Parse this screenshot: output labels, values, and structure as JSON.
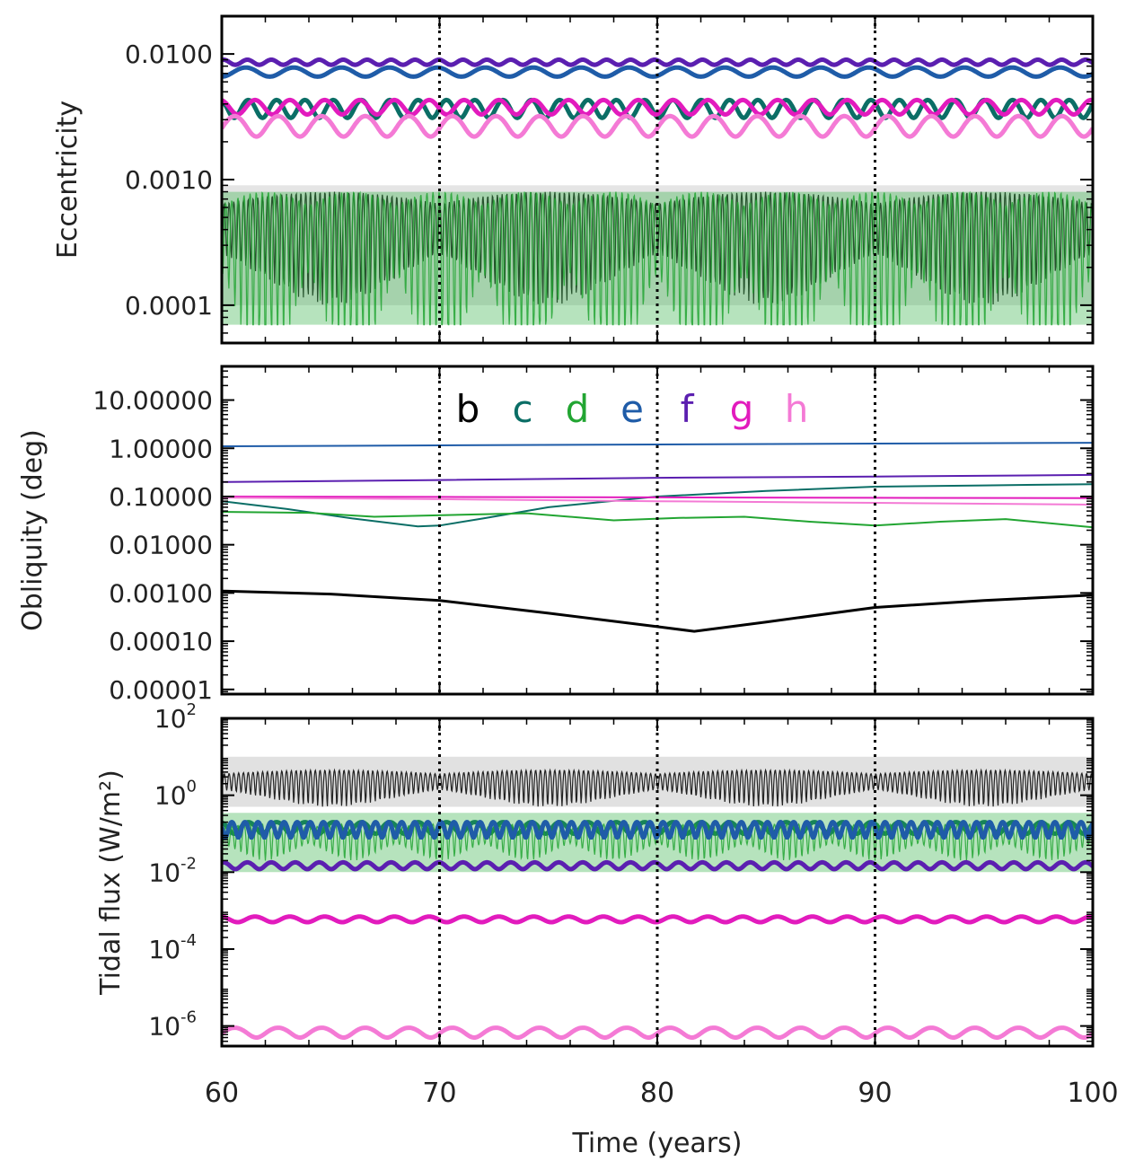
{
  "chart_data": [
    {
      "type": "line",
      "panel": "top",
      "title": "",
      "xlabel": "",
      "ylabel": "Eccentricity",
      "yscale": "log",
      "xlim": [
        60,
        100
      ],
      "ylim": [
        5e-05,
        0.02
      ],
      "xticks": [
        60,
        70,
        80,
        90,
        100
      ],
      "yticks": [
        {
          "value": 0.0001,
          "label": "0.0001"
        },
        {
          "value": 0.001,
          "label": "0.0010"
        },
        {
          "value": 0.01,
          "label": "0.0100"
        }
      ],
      "vlines": [
        70,
        80,
        90
      ],
      "series": [
        {
          "name": "b",
          "color": "#000000",
          "band_color": "#b5b5b5",
          "center": 0.00045,
          "amp": 0.00035,
          "lo": 0.0001,
          "hi": 0.0009,
          "period": 0.22,
          "beat": 20
        },
        {
          "name": "c",
          "color": "#0b6e66",
          "center": 0.0037,
          "amp": 0.0006,
          "lo": 0.0031,
          "hi": 0.0047,
          "period": 1.3,
          "beat": 0
        },
        {
          "name": "d",
          "color": "#22a532",
          "band_color": "#2fb043",
          "center": 0.0004,
          "amp": 0.0004,
          "lo": 7e-05,
          "hi": 0.0008,
          "period": 0.28,
          "beat": 8
        },
        {
          "name": "e",
          "color": "#1f5ca8",
          "center": 0.0072,
          "amp": 0.0006,
          "lo": 0.0066,
          "hi": 0.0078,
          "period": 2.2,
          "beat": 0
        },
        {
          "name": "f",
          "color": "#5b1fb0",
          "center": 0.0086,
          "amp": 0.0004,
          "lo": 0.0082,
          "hi": 0.009,
          "period": 1.1,
          "beat": 0
        },
        {
          "name": "g",
          "color": "#e21bbd",
          "center": 0.0038,
          "amp": 0.0005,
          "lo": 0.0033,
          "hi": 0.0043,
          "period": 1.6,
          "beat": 0
        },
        {
          "name": "h",
          "color": "#f47ad5",
          "center": 0.0027,
          "amp": 0.0005,
          "lo": 0.0022,
          "hi": 0.0032,
          "period": 2.0,
          "beat": 0
        }
      ]
    },
    {
      "type": "line",
      "panel": "middle",
      "title": "",
      "xlabel": "",
      "ylabel": "Obliquity (deg)",
      "yscale": "log",
      "xlim": [
        60,
        100
      ],
      "ylim": [
        8e-06,
        50
      ],
      "xticks": [
        60,
        70,
        80,
        90,
        100
      ],
      "yticks": [
        {
          "value": 1e-05,
          "label": "0.00001"
        },
        {
          "value": 0.0001,
          "label": "0.00010"
        },
        {
          "value": 0.001,
          "label": "0.00100"
        },
        {
          "value": 0.01,
          "label": "0.01000"
        },
        {
          "value": 0.1,
          "label": "0.10000"
        },
        {
          "value": 1,
          "label": "1.00000"
        },
        {
          "value": 10,
          "label": "10.00000"
        }
      ],
      "vlines": [
        70,
        80,
        90
      ],
      "legend": [
        "b",
        "c",
        "d",
        "e",
        "f",
        "g",
        "h"
      ],
      "series": [
        {
          "name": "b",
          "color": "#000000",
          "x": [
            60,
            65,
            70,
            75,
            80,
            81.7,
            85,
            90,
            95,
            100
          ],
          "y": [
            0.0011,
            0.00095,
            0.0007,
            0.00038,
            0.0002,
            0.00016,
            0.00025,
            0.0005,
            0.0007,
            0.0009
          ]
        },
        {
          "name": "c",
          "color": "#0b6e66",
          "x": [
            60,
            63,
            66,
            69,
            70,
            72,
            75,
            80,
            85,
            90,
            95,
            100
          ],
          "y": [
            0.08,
            0.055,
            0.035,
            0.024,
            0.025,
            0.035,
            0.06,
            0.1,
            0.13,
            0.16,
            0.17,
            0.18
          ]
        },
        {
          "name": "d",
          "color": "#22a532",
          "x": [
            60,
            64,
            67,
            71,
            74,
            78,
            81,
            84,
            87,
            90,
            93,
            96,
            100
          ],
          "y": [
            0.048,
            0.046,
            0.038,
            0.042,
            0.045,
            0.032,
            0.036,
            0.038,
            0.03,
            0.025,
            0.03,
            0.034,
            0.023
          ]
        },
        {
          "name": "e",
          "color": "#1f5ca8",
          "x": [
            60,
            70,
            80,
            90,
            100
          ],
          "y": [
            1.1,
            1.15,
            1.2,
            1.25,
            1.3
          ]
        },
        {
          "name": "f",
          "color": "#5b1fb0",
          "x": [
            60,
            70,
            80,
            90,
            100
          ],
          "y": [
            0.2,
            0.22,
            0.245,
            0.26,
            0.28
          ]
        },
        {
          "name": "g",
          "color": "#e21bbd",
          "x": [
            60,
            70,
            80,
            90,
            100
          ],
          "y": [
            0.1,
            0.098,
            0.096,
            0.094,
            0.093
          ]
        },
        {
          "name": "h",
          "color": "#f47ad5",
          "x": [
            60,
            70,
            80,
            90,
            100
          ],
          "y": [
            0.095,
            0.088,
            0.08,
            0.074,
            0.068
          ]
        }
      ]
    },
    {
      "type": "line",
      "panel": "bottom",
      "title": "",
      "xlabel": "Time (years)",
      "ylabel": "Tidal flux (W/m²)",
      "yscale": "log",
      "xlim": [
        60,
        100
      ],
      "ylim": [
        3e-07,
        100
      ],
      "xticks": [
        60,
        70,
        80,
        90,
        100
      ],
      "yticks": [
        {
          "value": 1e-06,
          "label": "10",
          "exp": "-6"
        },
        {
          "value": 0.0001,
          "label": "10",
          "exp": "-4"
        },
        {
          "value": 0.01,
          "label": "10",
          "exp": "-2"
        },
        {
          "value": 1,
          "label": "10",
          "exp": "0"
        },
        {
          "value": 100,
          "label": "10",
          "exp": "2"
        }
      ],
      "vlines": [
        70,
        80,
        90
      ],
      "series": [
        {
          "name": "b",
          "color": "#000000",
          "band_color": "#a8a8a8",
          "center": 2.5,
          "amp": 2.0,
          "lo": 0.5,
          "hi": 10,
          "period": 0.22,
          "beat": 20
        },
        {
          "name": "c",
          "color": "#0b6e66",
          "center": 0.15,
          "amp": 0.05,
          "lo": 0.1,
          "hi": 0.2,
          "period": 1.3,
          "beat": 0
        },
        {
          "name": "d",
          "color": "#22a532",
          "band_color": "#2fb043",
          "center": 0.1,
          "amp": 0.08,
          "lo": 0.01,
          "hi": 0.35,
          "period": 0.28,
          "beat": 8
        },
        {
          "name": "e",
          "color": "#1f5ca8",
          "center": 0.14,
          "amp": 0.06,
          "lo": 0.08,
          "hi": 0.22,
          "period": 0.6,
          "beat": 0
        },
        {
          "name": "f",
          "color": "#5b1fb0",
          "center": 0.015,
          "amp": 0.003,
          "lo": 0.012,
          "hi": 0.018,
          "period": 1.1,
          "beat": 0
        },
        {
          "name": "g",
          "color": "#e21bbd",
          "center": 0.0006,
          "amp": 0.0001,
          "lo": 0.0005,
          "hi": 0.0007,
          "period": 1.6,
          "beat": 0
        },
        {
          "name": "h",
          "color": "#f47ad5",
          "center": 7e-07,
          "amp": 2e-07,
          "lo": 5e-07,
          "hi": 9e-07,
          "period": 2.0,
          "beat": 0
        }
      ]
    }
  ]
}
